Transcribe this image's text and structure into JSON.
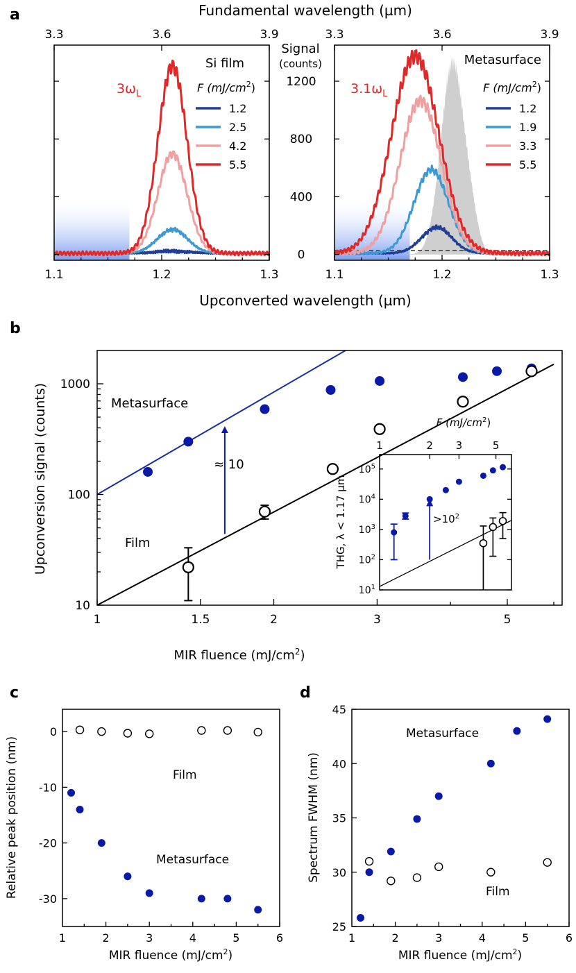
{
  "figure": {
    "panel_labels": [
      "a",
      "b",
      "c",
      "d"
    ],
    "colors": {
      "blue_dark": "#1f3e96",
      "blue_light": "#3d9ad4",
      "pink": "#f0a0a0",
      "red": "#e02828",
      "navy": "#0a1aa8",
      "gray_fill": "#cfcfcf",
      "line_blue": "#1a2fa3",
      "line_black": "#000000"
    }
  },
  "chart_data": [
    {
      "id": "a-left",
      "type": "line",
      "title": "Si film",
      "top_label": "Fundamental wavelength (µm)",
      "xlabel": "Upconverted wavelength (µm)",
      "center_label": [
        "Signal",
        "(counts)"
      ],
      "harmonic_label": "3ω",
      "harmonic_sub": "L",
      "legend_title": "F (mJ/cm",
      "legend_sup": "2",
      "legend_close": ")",
      "xlim": [
        1.1,
        1.3
      ],
      "ylim": [
        -40,
        1450
      ],
      "top_xlim": [
        3.3,
        3.9
      ],
      "x_ticks": [
        "1.1",
        "1.2",
        "1.3"
      ],
      "top_ticks": [
        "3.3",
        "3.6",
        "3.9"
      ],
      "y_ticks": [
        "0",
        "400",
        "800",
        "1200"
      ],
      "shade_to": 1.17,
      "series": [
        {
          "name": "1.2",
          "color": "#1f3e96",
          "peak": 1.21,
          "amp": 15,
          "width": 0.016,
          "base": 8
        },
        {
          "name": "2.5",
          "color": "#3d9ad4",
          "peak": 1.21,
          "amp": 165,
          "width": 0.014,
          "base": 8
        },
        {
          "name": "4.2",
          "color": "#f0a0a0",
          "peak": 1.21,
          "amp": 690,
          "width": 0.0135,
          "base": 8
        },
        {
          "name": "5.5",
          "color": "#e02828",
          "peak": 1.21,
          "amp": 1300,
          "width": 0.0135,
          "base": 8
        }
      ]
    },
    {
      "id": "a-right",
      "type": "line",
      "title": "Metasurface",
      "harmonic_label": "3.1ω",
      "harmonic_sub": "L",
      "legend_title": "F (mJ/cm",
      "legend_sup": "2",
      "legend_close": ")",
      "xlim": [
        1.1,
        1.3
      ],
      "ylim": [
        -40,
        1450
      ],
      "x_ticks": [
        "1.1",
        "1.2",
        "1.3"
      ],
      "top_ticks": [
        "3.3",
        "3.6",
        "3.9"
      ],
      "shade_to": 1.17,
      "gray_peak": {
        "center": 1.21,
        "amp": 1330,
        "width": 0.011
      },
      "series": [
        {
          "name": "1.2",
          "color": "#1f3e96",
          "peak": 1.195,
          "amp": 180,
          "width": 0.014,
          "base": 8
        },
        {
          "name": "1.9",
          "color": "#3d9ad4",
          "peak": 1.19,
          "amp": 580,
          "width": 0.016,
          "base": 8
        },
        {
          "name": "3.3",
          "color": "#f0a0a0",
          "peak": 1.18,
          "amp": 1060,
          "width": 0.019,
          "base": 8
        },
        {
          "name": "5.5",
          "color": "#e02828",
          "peak": 1.175,
          "amp": 1370,
          "width": 0.022,
          "base": 8
        }
      ]
    },
    {
      "id": "b",
      "type": "scatter",
      "xlabel": "MIR fluence (mJ/cm",
      "xlabel_sup": "2",
      "xlabel_close": ")",
      "ylabel": "Upconversion signal (counts)",
      "xscale": "log",
      "yscale": "log",
      "xlim": [
        1,
        6.2
      ],
      "ylim": [
        10,
        2000
      ],
      "x_ticks": [
        "1",
        "1.5",
        "2",
        "3",
        "5"
      ],
      "y_ticks": [
        "10",
        "100",
        "1000"
      ],
      "labels": {
        "metasurface": "Metasurface",
        "film": "Film",
        "ratio": "≈ 10"
      },
      "metasurface": {
        "x": [
          1.22,
          1.43,
          1.93,
          2.5,
          3.03,
          4.2,
          4.8,
          5.5
        ],
        "y": [
          160,
          300,
          590,
          880,
          1060,
          1150,
          1300,
          1380
        ]
      },
      "film": {
        "x": [
          1.43,
          1.93,
          2.52,
          3.03,
          4.2,
          5.5
        ],
        "y": [
          22,
          70,
          170,
          390,
          690,
          1300
        ],
        "yerr_low": [
          11,
          60,
          170,
          390,
          690,
          1300
        ],
        "yerr_high": [
          33,
          80,
          170,
          390,
          690,
          1300
        ]
      },
      "fit_metasurface": {
        "x": [
          1,
          2.65
        ],
        "y": [
          100,
          2000
        ]
      },
      "fit_film": {
        "x": [
          1,
          6.0
        ],
        "y": [
          10,
          1500
        ]
      },
      "ratio_arrow": {
        "x": 1.65,
        "from": 44,
        "to": 420
      },
      "inset": {
        "top_label": "F (mJ/cm",
        "top_sup": "2",
        "top_close": ")",
        "ylabel": "THG, λ < 1.17 µm",
        "ratio": ">10",
        "ratio_sup": "2",
        "x_ticks": [
          "1",
          "2",
          "3",
          "5"
        ],
        "y_ticks": [
          "10",
          "10",
          "10",
          "10",
          "10"
        ],
        "y_tick_exp": [
          "1",
          "2",
          "3",
          "4",
          "5"
        ],
        "xlim": [
          1,
          6.2
        ],
        "ylim": [
          10,
          300000
        ],
        "metasurface": {
          "x": [
            1.22,
            1.43,
            2.0,
            2.5,
            3.0,
            4.2,
            4.8,
            5.5
          ],
          "y": [
            800,
            2800,
            10000,
            20000,
            38000,
            60000,
            90000,
            115000
          ],
          "yerr_low": [
            100,
            2200,
            10000,
            20000,
            38000,
            60000,
            90000,
            115000
          ],
          "yerr_high": [
            1500,
            3500,
            10000,
            20000,
            38000,
            60000,
            90000,
            115000
          ]
        },
        "film": {
          "x": [
            4.2,
            4.8,
            5.5
          ],
          "y": [
            350,
            1200,
            1900
          ],
          "yerr_low": [
            10,
            130,
            500
          ],
          "yerr_high": [
            1300,
            2400,
            3600
          ]
        },
        "fit": {
          "x": [
            1,
            6.2
          ],
          "y": [
            13,
            2000
          ]
        },
        "arrow": {
          "x": 2.0,
          "from": 100,
          "to": 10000
        }
      }
    },
    {
      "id": "c",
      "type": "scatter",
      "xlabel": "MIR fluence (mJ/cm",
      "xlabel_sup": "2",
      "xlabel_close": ")",
      "ylabel": "Relative peak position (nm)",
      "xlim": [
        1,
        6
      ],
      "ylim": [
        -35,
        4
      ],
      "x_ticks": [
        "2",
        "3",
        "4",
        "5",
        "6"
      ],
      "y_ticks": [
        "-30",
        "-20",
        "-10",
        "0"
      ],
      "labels": {
        "film": "Film",
        "metasurface": "Metasurface"
      },
      "metasurface": {
        "x": [
          1.2,
          1.4,
          1.9,
          2.5,
          3.0,
          4.2,
          4.8,
          5.5
        ],
        "y": [
          -11,
          -14,
          -20,
          -26,
          -29,
          -30,
          -30,
          -32
        ]
      },
      "film": {
        "x": [
          1.4,
          1.9,
          2.5,
          3.0,
          4.2,
          4.8,
          5.5
        ],
        "y": [
          0.3,
          0.0,
          -0.3,
          -0.4,
          0.2,
          0.2,
          -0.1
        ]
      }
    },
    {
      "id": "d",
      "type": "scatter",
      "xlabel": "MIR fluence (mJ/cm",
      "xlabel_sup": "2",
      "xlabel_close": ")",
      "ylabel": "Spectrum FWHM (nm)",
      "xlim": [
        1,
        6
      ],
      "ylim": [
        25,
        45
      ],
      "x_ticks": [
        "2",
        "3",
        "4",
        "5",
        "6"
      ],
      "y_ticks": [
        "25",
        "30",
        "35",
        "40",
        "45"
      ],
      "labels": {
        "metasurface": "Metasurface",
        "film": "Film"
      },
      "metasurface": {
        "x": [
          1.2,
          1.4,
          1.9,
          2.5,
          3.0,
          4.2,
          4.8,
          5.5
        ],
        "y": [
          25.8,
          30.0,
          31.9,
          34.9,
          37.0,
          40.0,
          43.0,
          44.1
        ]
      },
      "film": {
        "x": [
          1.4,
          1.9,
          2.5,
          3.0,
          4.2,
          5.5
        ],
        "y": [
          31.0,
          29.2,
          29.5,
          30.5,
          30.0,
          30.9
        ]
      }
    }
  ]
}
